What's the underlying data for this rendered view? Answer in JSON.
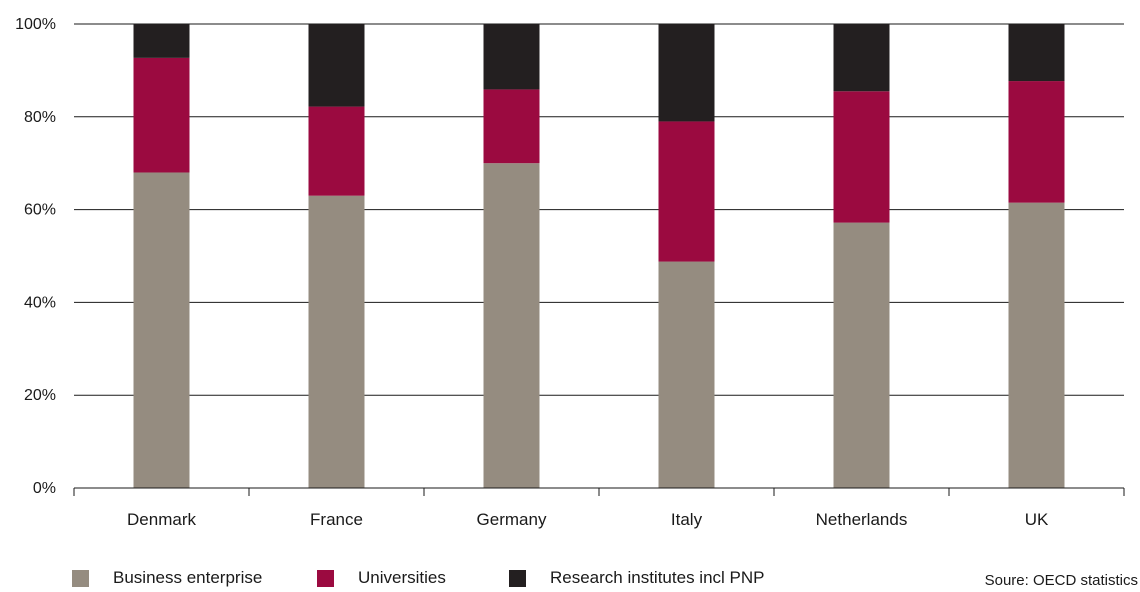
{
  "chart_data": {
    "type": "bar",
    "stacked": true,
    "categories": [
      "Denmark",
      "France",
      "Germany",
      "Italy",
      "Netherlands",
      "UK"
    ],
    "series": [
      {
        "name": "Business enterprise",
        "color": "#958c80",
        "values": [
          68,
          63,
          70,
          48.8,
          57.2,
          61.5
        ]
      },
      {
        "name": "Universities",
        "color": "#9b0a40",
        "values": [
          24.7,
          19.2,
          15.9,
          30.2,
          28.3,
          26.2
        ]
      },
      {
        "name": "Research institutes incl PNP",
        "color": "#231f20",
        "values": [
          7.3,
          17.8,
          14.1,
          21,
          14.5,
          12.3
        ]
      }
    ],
    "ylim": [
      0,
      100
    ],
    "yticks": [
      "0%",
      "20%",
      "40%",
      "60%",
      "80%",
      "100%"
    ],
    "grid": true,
    "legend_position": "bottom-left",
    "source_note": "Soure: OECD statistics"
  }
}
